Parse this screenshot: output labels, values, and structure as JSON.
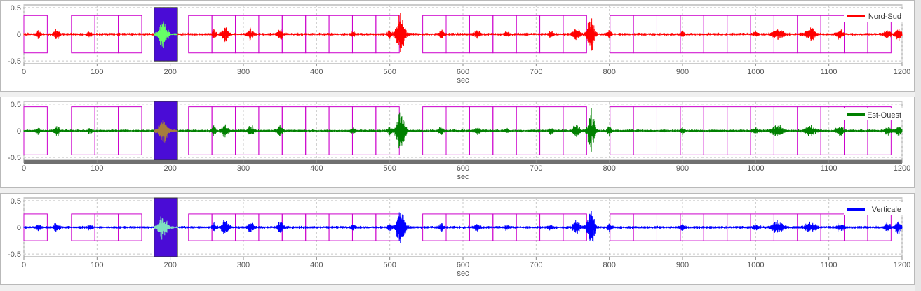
{
  "chart_data": [
    {
      "type": "line",
      "series": [
        {
          "name": "Nord-Sud",
          "color": "#ff0000",
          "highlight_color": "#66ff66"
        }
      ],
      "xlabel": "sec",
      "xlim": [
        0,
        1200
      ],
      "ylim": [
        -0.55,
        0.55
      ],
      "xticks": [
        0,
        100,
        200,
        300,
        400,
        500,
        600,
        700,
        800,
        900,
        1000,
        1100,
        1200
      ],
      "yticks": [
        0.5,
        0,
        -0.5
      ],
      "ytick_labels": [
        "0.5",
        "0",
        "-0.5"
      ],
      "legend_position": "top-right",
      "grid": true,
      "window_y": 0.35,
      "selected_y": 0.5
    },
    {
      "type": "line",
      "series": [
        {
          "name": "Est-Ouest",
          "color": "#008000",
          "highlight_color": "#a67c3c"
        }
      ],
      "xlabel": "sec",
      "xlim": [
        0,
        1200
      ],
      "ylim": [
        -0.55,
        0.55
      ],
      "xticks": [
        0,
        100,
        200,
        300,
        400,
        500,
        600,
        700,
        800,
        900,
        1000,
        1100,
        1200
      ],
      "yticks": [
        0.5,
        0,
        -0.5
      ],
      "ytick_labels": [
        "0.5",
        "0",
        "-0.5"
      ],
      "legend_position": "top-right",
      "grid": true,
      "window_y": 0.45,
      "selected_y": 0.55
    },
    {
      "type": "line",
      "series": [
        {
          "name": "Verticale",
          "color": "#0000ff",
          "highlight_color": "#7fe0c0"
        }
      ],
      "xlabel": "sec",
      "xlim": [
        0,
        1200
      ],
      "ylim": [
        -0.55,
        0.55
      ],
      "xticks": [
        0,
        100,
        200,
        300,
        400,
        500,
        600,
        700,
        800,
        900,
        1000,
        1100,
        1200
      ],
      "yticks": [
        0.5,
        0,
        -0.5
      ],
      "ytick_labels": [
        "0.5",
        "0",
        "-0.5"
      ],
      "legend_position": "top-right",
      "grid": true,
      "window_y": 0.25,
      "selected_y": 0.55
    }
  ],
  "windows": {
    "color": "#cc00cc",
    "selected_fill": "#4a0cd6",
    "selected": [
      178,
      210
    ],
    "list": [
      [
        0,
        32
      ],
      [
        65,
        97
      ],
      [
        97,
        129
      ],
      [
        129,
        161
      ],
      [
        225,
        257
      ],
      [
        257,
        289
      ],
      [
        289,
        321
      ],
      [
        321,
        353
      ],
      [
        353,
        385
      ],
      [
        385,
        417
      ],
      [
        417,
        449
      ],
      [
        449,
        481
      ],
      [
        481,
        513
      ],
      [
        545,
        577
      ],
      [
        577,
        609
      ],
      [
        609,
        641
      ],
      [
        641,
        673
      ],
      [
        673,
        705
      ],
      [
        705,
        737
      ],
      [
        737,
        769
      ],
      [
        801,
        833
      ],
      [
        833,
        865
      ],
      [
        865,
        897
      ],
      [
        897,
        929
      ],
      [
        929,
        961
      ],
      [
        961,
        993
      ],
      [
        993,
        1025
      ],
      [
        1025,
        1057
      ],
      [
        1057,
        1089
      ],
      [
        1089,
        1121
      ],
      [
        1121,
        1153
      ],
      [
        1153,
        1185
      ]
    ]
  },
  "events": [
    [
      20,
      0.08,
      3
    ],
    [
      45,
      0.1,
      4
    ],
    [
      90,
      0.06,
      3
    ],
    [
      190,
      0.3,
      6
    ],
    [
      260,
      0.1,
      3
    ],
    [
      275,
      0.15,
      5
    ],
    [
      310,
      0.12,
      4
    ],
    [
      350,
      0.12,
      4
    ],
    [
      450,
      0.05,
      3
    ],
    [
      500,
      0.1,
      3
    ],
    [
      515,
      0.42,
      6
    ],
    [
      570,
      0.1,
      3
    ],
    [
      620,
      0.08,
      4
    ],
    [
      660,
      0.06,
      3
    ],
    [
      720,
      0.06,
      3
    ],
    [
      755,
      0.14,
      5
    ],
    [
      775,
      0.4,
      5
    ],
    [
      800,
      0.1,
      3
    ],
    [
      900,
      0.05,
      3
    ],
    [
      1000,
      0.05,
      5
    ],
    [
      1030,
      0.12,
      8
    ],
    [
      1075,
      0.12,
      7
    ],
    [
      1115,
      0.1,
      5
    ],
    [
      1180,
      0.1,
      4
    ],
    [
      1195,
      0.15,
      4
    ]
  ],
  "x_scroll": {
    "color": "#707070"
  }
}
